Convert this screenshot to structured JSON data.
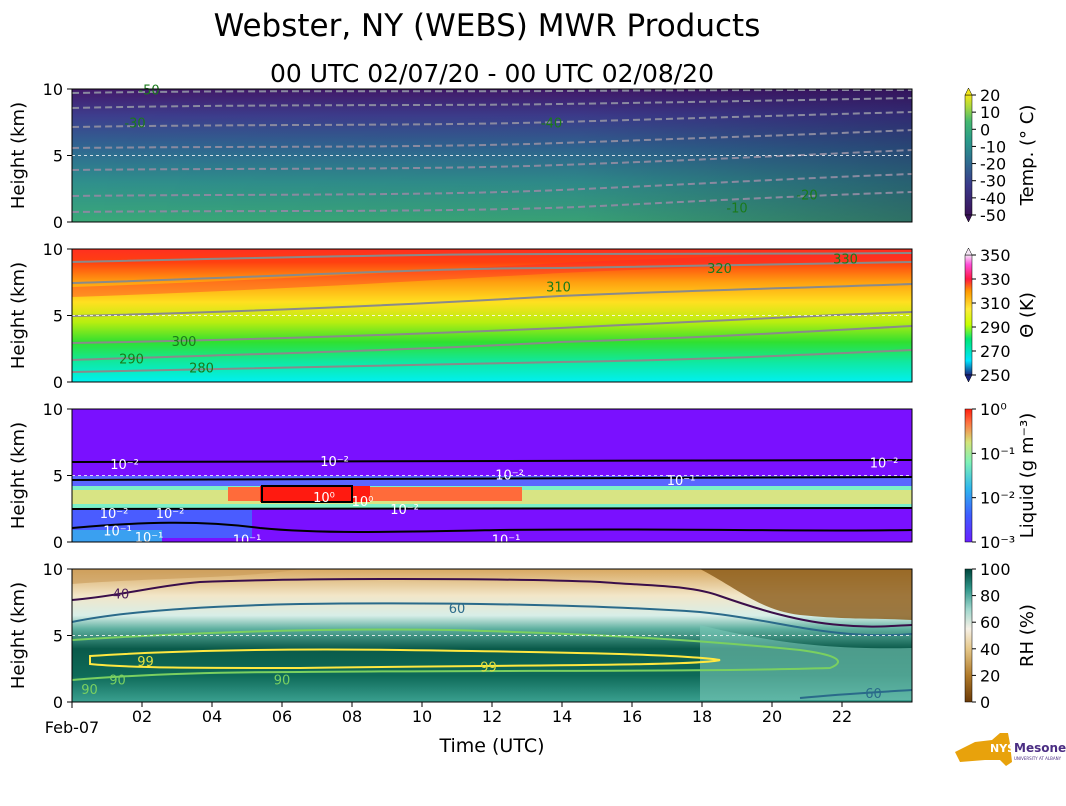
{
  "header": {
    "title": "Webster, NY (WEBS) MWR Products",
    "subtitle": "00 UTC 02/07/20 - 00 UTC 02/08/20"
  },
  "x_axis": {
    "label": "Time (UTC)",
    "start_label": "Feb-07",
    "ticks": [
      "02",
      "04",
      "06",
      "08",
      "10",
      "12",
      "14",
      "16",
      "18",
      "20",
      "22"
    ]
  },
  "logo": {
    "text": "NYS Mesonet",
    "subtext": "UNIVERSITY AT ALBANY",
    "color": "#e8a20c",
    "accent": "#4b2e83"
  },
  "chart_data": [
    {
      "type": "heatmap",
      "ylabel": "Height (km)",
      "ylim": [
        0,
        10
      ],
      "yticks": [
        "0",
        "5",
        "10"
      ],
      "xlim": [
        0,
        24
      ],
      "colorbar": {
        "label": "Temp. (° C)",
        "ticks": [
          "20",
          "10",
          "0",
          "-10",
          "-20",
          "-30",
          "-40",
          "-50"
        ],
        "range": [
          -50,
          20
        ]
      },
      "contours": [
        {
          "level": "-50",
          "color": "#1a7a1a",
          "x": 2.2,
          "y": 9.9
        },
        {
          "level": "-30",
          "color": "#1a7a1a",
          "x": 1.8,
          "y": 7.4
        },
        {
          "level": "-40",
          "color": "#1a7a1a",
          "x": 13.7,
          "y": 7.4
        },
        {
          "level": "-20",
          "color": "#1a7a1a",
          "x": 21.0,
          "y": 2.0
        },
        {
          "level": "-10",
          "color": "#1a7a1a",
          "x": 19.0,
          "y": 1.0
        }
      ]
    },
    {
      "type": "heatmap",
      "ylabel": "Height (km)",
      "ylim": [
        0,
        10
      ],
      "yticks": [
        "0",
        "5",
        "10"
      ],
      "xlim": [
        0,
        24
      ],
      "colorbar": {
        "label": "Θ (K)",
        "ticks": [
          "350",
          "330",
          "310",
          "290",
          "270",
          "250"
        ],
        "range": [
          250,
          360
        ]
      },
      "contours": [
        {
          "level": "320",
          "color": "#1a7a1a",
          "x": 18.5,
          "y": 8.5
        },
        {
          "level": "330",
          "color": "#1a7a1a",
          "x": 22.1,
          "y": 9.2
        },
        {
          "level": "310",
          "color": "#1a7a1a",
          "x": 13.9,
          "y": 7.1
        },
        {
          "level": "300",
          "color": "#1a7a1a",
          "x": 3.2,
          "y": 3.0
        },
        {
          "level": "290",
          "color": "#1a7a1a",
          "x": 1.7,
          "y": 1.7
        },
        {
          "level": "280",
          "color": "#1a7a1a",
          "x": 3.7,
          "y": 1.0
        }
      ]
    },
    {
      "type": "heatmap",
      "ylabel": "Height (km)",
      "ylim": [
        0,
        10
      ],
      "yticks": [
        "0",
        "5",
        "10"
      ],
      "xlim": [
        0,
        24
      ],
      "colorbar": {
        "label": "Liquid (g m⁻³)",
        "ticks": [
          "10⁰",
          "10⁻¹",
          "10⁻²",
          "10⁻³"
        ],
        "range": [
          0.001,
          1
        ]
      },
      "contours": [
        {
          "level": "10⁻²",
          "color": "#ffffff",
          "x": 1.5,
          "y": 5.8
        },
        {
          "level": "10⁻²",
          "color": "#ffffff",
          "x": 7.5,
          "y": 6.0
        },
        {
          "level": "10⁻²",
          "color": "#ffffff",
          "x": 12.5,
          "y": 5.0
        },
        {
          "level": "10⁻²",
          "color": "#ffffff",
          "x": 23.2,
          "y": 5.9
        },
        {
          "level": "10⁻¹",
          "color": "#ffffff",
          "x": 17.4,
          "y": 4.6
        },
        {
          "level": "10⁰",
          "color": "#ffffff",
          "x": 7.2,
          "y": 3.3
        },
        {
          "level": "10⁰",
          "color": "#ffffff",
          "x": 8.3,
          "y": 3.0
        },
        {
          "level": "10⁻²",
          "color": "#ffffff",
          "x": 9.5,
          "y": 2.4
        },
        {
          "level": "10⁻²",
          "color": "#ffffff",
          "x": 1.2,
          "y": 2.1
        },
        {
          "level": "10⁻²",
          "color": "#ffffff",
          "x": 2.8,
          "y": 2.1
        },
        {
          "level": "10⁻¹",
          "color": "#ffffff",
          "x": 1.3,
          "y": 0.8
        },
        {
          "level": "10⁻¹",
          "color": "#ffffff",
          "x": 2.2,
          "y": 0.3
        },
        {
          "level": "10⁻¹",
          "color": "#ffffff",
          "x": 5.0,
          "y": 0.1
        },
        {
          "level": "10⁻¹",
          "color": "#ffffff",
          "x": 12.4,
          "y": 0.1
        }
      ]
    },
    {
      "type": "heatmap",
      "ylabel": "Height (km)",
      "ylim": [
        0,
        10
      ],
      "yticks": [
        "0",
        "5",
        "10"
      ],
      "xlim": [
        0,
        24
      ],
      "colorbar": {
        "label": "RH (%)",
        "ticks": [
          "100",
          "80",
          "60",
          "40",
          "20",
          "0"
        ],
        "range": [
          0,
          105
        ]
      },
      "contours": [
        {
          "level": "40",
          "color": "#4a1a5a",
          "x": 1.4,
          "y": 8.1
        },
        {
          "level": "60",
          "color": "#2a6a8a",
          "x": 11.0,
          "y": 7.0
        },
        {
          "level": "99",
          "color": "#e0e040",
          "x": 2.1,
          "y": 3.0
        },
        {
          "level": "99",
          "color": "#e0e040",
          "x": 11.9,
          "y": 2.6
        },
        {
          "level": "90",
          "color": "#7ad060",
          "x": 1.3,
          "y": 1.6
        },
        {
          "level": "90",
          "color": "#7ad060",
          "x": 6.0,
          "y": 1.6
        },
        {
          "level": "90",
          "color": "#7ad060",
          "x": 0.5,
          "y": 0.9
        },
        {
          "level": "60",
          "color": "#2a6a8a",
          "x": 22.9,
          "y": 0.6
        }
      ]
    }
  ]
}
